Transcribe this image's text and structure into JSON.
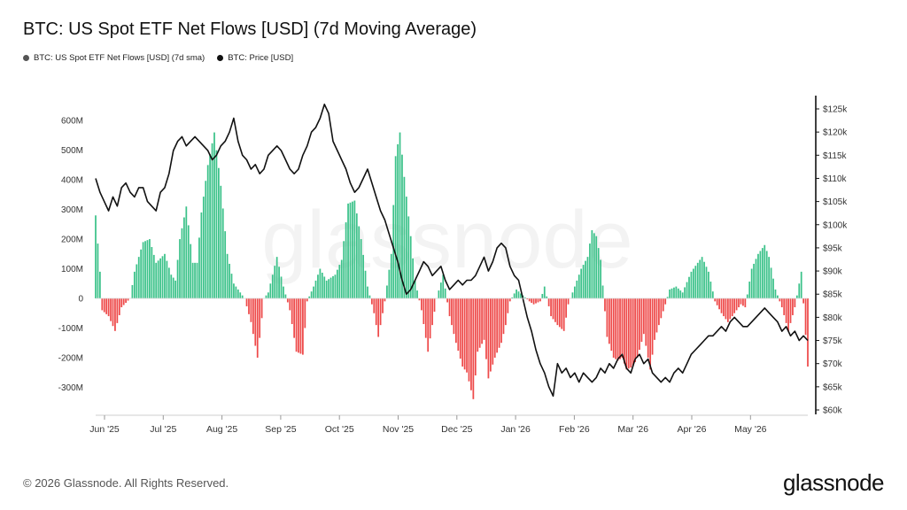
{
  "title": "BTC: US Spot ETF Net Flows [USD] (7d Moving Average)",
  "legend": [
    {
      "label": "BTC: US Spot ETF Net Flows [USD] (7d sma)",
      "color": "#555555"
    },
    {
      "label": "BTC: Price [USD]",
      "color": "#111111"
    }
  ],
  "watermark": "glassnode",
  "footer": {
    "copyright": "© 2026 Glassnode. All Rights Reserved.",
    "logo": "glassnode"
  },
  "colors": {
    "positive": "#3cc28a",
    "negative": "#ee4a4a",
    "price": "#111111"
  },
  "chart_data": {
    "type": "bar",
    "x_axis": {
      "labels": [
        "Jun '25",
        "Jul '25",
        "Aug '25",
        "Sep '25",
        "Oct '25",
        "Nov '25",
        "Dec '25",
        "Jan '26",
        "Feb '26",
        "Mar '26",
        "Apr '26",
        "May '26"
      ],
      "range_months": [
        0,
        12.3
      ]
    },
    "y_left": {
      "ticks": [
        "600M",
        "500M",
        "400M",
        "300M",
        "200M",
        "100M",
        "0",
        "-100M",
        "-200M",
        "-300M"
      ],
      "tick_values": [
        600,
        500,
        400,
        300,
        200,
        100,
        0,
        -100,
        -200,
        -300
      ],
      "range": [
        -370,
        650
      ],
      "unit": "USD millions"
    },
    "y_right": {
      "ticks": [
        "$125k",
        "$120k",
        "$115k",
        "$110k",
        "$105k",
        "$100k",
        "$95k",
        "$90k",
        "$85k",
        "$80k",
        "$75k",
        "$70k",
        "$65k",
        "$60k"
      ],
      "tick_values": [
        125,
        120,
        115,
        110,
        105,
        100,
        95,
        90,
        85,
        80,
        75,
        70,
        65,
        60
      ],
      "range": [
        60,
        127
      ],
      "unit": "USD thousands"
    },
    "series": [
      {
        "name": "BTC: US Spot ETF Net Flows [USD] (7d sma)",
        "type": "bar",
        "points": [
          [
            0.0,
            280
          ],
          [
            0.1,
            90
          ],
          [
            0.15,
            -40
          ],
          [
            0.3,
            -60
          ],
          [
            0.45,
            -110
          ],
          [
            0.6,
            -30
          ],
          [
            0.8,
            0
          ],
          [
            0.9,
            90
          ],
          [
            1.1,
            190
          ],
          [
            1.25,
            200
          ],
          [
            1.4,
            120
          ],
          [
            1.6,
            150
          ],
          [
            1.75,
            80
          ],
          [
            1.85,
            60
          ],
          [
            1.95,
            200
          ],
          [
            2.1,
            310
          ],
          [
            2.25,
            120
          ],
          [
            2.35,
            120
          ],
          [
            2.45,
            290
          ],
          [
            2.6,
            450
          ],
          [
            2.75,
            560
          ],
          [
            2.9,
            380
          ],
          [
            3.05,
            150
          ],
          [
            3.2,
            50
          ],
          [
            3.35,
            20
          ],
          [
            3.45,
            0
          ],
          [
            3.6,
            -80
          ],
          [
            3.75,
            -200
          ],
          [
            3.9,
            0
          ],
          [
            4.0,
            20
          ],
          [
            4.2,
            140
          ],
          [
            4.35,
            40
          ],
          [
            4.5,
            -40
          ],
          [
            4.65,
            -180
          ],
          [
            4.8,
            -190
          ],
          [
            4.9,
            -10
          ],
          [
            5.05,
            40
          ],
          [
            5.2,
            100
          ],
          [
            5.35,
            60
          ],
          [
            5.55,
            80
          ],
          [
            5.7,
            130
          ],
          [
            5.85,
            320
          ],
          [
            6.0,
            330
          ],
          [
            6.15,
            200
          ],
          [
            6.3,
            40
          ],
          [
            6.45,
            -50
          ],
          [
            6.55,
            -130
          ],
          [
            6.7,
            -10
          ],
          [
            6.85,
            150
          ],
          [
            6.95,
            480
          ],
          [
            7.05,
            560
          ],
          [
            7.15,
            410
          ],
          [
            7.3,
            210
          ],
          [
            7.4,
            60
          ],
          [
            7.55,
            -40
          ],
          [
            7.7,
            -180
          ],
          [
            7.9,
            0
          ],
          [
            8.05,
            80
          ],
          [
            8.2,
            -60
          ],
          [
            8.35,
            -150
          ],
          [
            8.5,
            -230
          ],
          [
            8.6,
            -250
          ],
          [
            8.75,
            -340
          ],
          [
            8.85,
            -180
          ],
          [
            9.0,
            -140
          ],
          [
            9.1,
            -270
          ],
          [
            9.25,
            -200
          ],
          [
            9.4,
            -150
          ],
          [
            9.5,
            -90
          ],
          [
            9.6,
            -10
          ],
          [
            9.75,
            30
          ],
          [
            9.9,
            10
          ],
          [
            10.05,
            -10
          ],
          [
            10.15,
            -20
          ],
          [
            10.3,
            -10
          ],
          [
            10.4,
            40
          ],
          [
            10.55,
            -60
          ],
          [
            10.7,
            -90
          ],
          [
            10.85,
            -110
          ],
          [
            10.95,
            -20
          ],
          [
            11.1,
            40
          ],
          [
            11.25,
            100
          ],
          [
            11.4,
            140
          ],
          [
            11.5,
            230
          ],
          [
            11.6,
            210
          ],
          [
            11.7,
            130
          ],
          [
            11.85,
            -130
          ],
          [
            12.0,
            -200
          ],
          [
            12.1,
            -210
          ],
          [
            12.2,
            -200
          ],
          [
            12.3,
            -240
          ],
          [
            12.45,
            -230
          ],
          [
            12.55,
            -200
          ],
          [
            12.7,
            -120
          ],
          [
            12.85,
            -240
          ],
          [
            12.95,
            -140
          ],
          [
            13.05,
            -90
          ],
          [
            13.2,
            -20
          ],
          [
            13.3,
            30
          ],
          [
            13.45,
            40
          ],
          [
            13.6,
            20
          ],
          [
            13.8,
            90
          ],
          [
            13.95,
            120
          ],
          [
            14.05,
            140
          ],
          [
            14.2,
            90
          ],
          [
            14.35,
            -10
          ],
          [
            14.5,
            -50
          ],
          [
            14.65,
            -80
          ],
          [
            14.8,
            -50
          ],
          [
            14.95,
            -20
          ],
          [
            15.05,
            -30
          ],
          [
            15.2,
            100
          ],
          [
            15.35,
            150
          ],
          [
            15.5,
            180
          ],
          [
            15.6,
            140
          ],
          [
            15.75,
            30
          ],
          [
            15.9,
            -30
          ],
          [
            16.05,
            -110
          ],
          [
            16.2,
            -30
          ],
          [
            16.35,
            90
          ],
          [
            16.5,
            -230
          ]
        ]
      },
      {
        "name": "BTC: Price [USD]",
        "type": "line",
        "points": [
          [
            0.0,
            110
          ],
          [
            0.1,
            107
          ],
          [
            0.2,
            105
          ],
          [
            0.3,
            103
          ],
          [
            0.4,
            106
          ],
          [
            0.5,
            104
          ],
          [
            0.6,
            108
          ],
          [
            0.7,
            109
          ],
          [
            0.8,
            107
          ],
          [
            0.9,
            106
          ],
          [
            1.0,
            108
          ],
          [
            1.1,
            108
          ],
          [
            1.2,
            105
          ],
          [
            1.3,
            104
          ],
          [
            1.4,
            103
          ],
          [
            1.5,
            107
          ],
          [
            1.6,
            108
          ],
          [
            1.7,
            111
          ],
          [
            1.8,
            116
          ],
          [
            1.9,
            118
          ],
          [
            2.0,
            119
          ],
          [
            2.1,
            117
          ],
          [
            2.2,
            118
          ],
          [
            2.3,
            119
          ],
          [
            2.4,
            118
          ],
          [
            2.5,
            117
          ],
          [
            2.6,
            116
          ],
          [
            2.7,
            114
          ],
          [
            2.8,
            115
          ],
          [
            2.9,
            117
          ],
          [
            3.0,
            118
          ],
          [
            3.1,
            120
          ],
          [
            3.2,
            123
          ],
          [
            3.3,
            118
          ],
          [
            3.4,
            115
          ],
          [
            3.5,
            114
          ],
          [
            3.6,
            112
          ],
          [
            3.7,
            113
          ],
          [
            3.8,
            111
          ],
          [
            3.9,
            112
          ],
          [
            4.0,
            115
          ],
          [
            4.1,
            116
          ],
          [
            4.2,
            117
          ],
          [
            4.3,
            116
          ],
          [
            4.4,
            114
          ],
          [
            4.5,
            112
          ],
          [
            4.6,
            111
          ],
          [
            4.7,
            112
          ],
          [
            4.8,
            115
          ],
          [
            4.9,
            117
          ],
          [
            5.0,
            120
          ],
          [
            5.1,
            121
          ],
          [
            5.2,
            123
          ],
          [
            5.3,
            126
          ],
          [
            5.4,
            124
          ],
          [
            5.5,
            118
          ],
          [
            5.6,
            116
          ],
          [
            5.7,
            114
          ],
          [
            5.8,
            112
          ],
          [
            5.9,
            109
          ],
          [
            6.0,
            107
          ],
          [
            6.1,
            108
          ],
          [
            6.2,
            110
          ],
          [
            6.3,
            112
          ],
          [
            6.4,
            109
          ],
          [
            6.5,
            106
          ],
          [
            6.6,
            103
          ],
          [
            6.7,
            101
          ],
          [
            6.8,
            98
          ],
          [
            6.9,
            95
          ],
          [
            7.0,
            92
          ],
          [
            7.1,
            88
          ],
          [
            7.2,
            85
          ],
          [
            7.3,
            86
          ],
          [
            7.4,
            88
          ],
          [
            7.5,
            90
          ],
          [
            7.6,
            92
          ],
          [
            7.7,
            91
          ],
          [
            7.8,
            89
          ],
          [
            7.9,
            90
          ],
          [
            8.0,
            91
          ],
          [
            8.1,
            88
          ],
          [
            8.2,
            86
          ],
          [
            8.3,
            87
          ],
          [
            8.4,
            88
          ],
          [
            8.5,
            87
          ],
          [
            8.6,
            88
          ],
          [
            8.7,
            88
          ],
          [
            8.8,
            89
          ],
          [
            8.9,
            91
          ],
          [
            9.0,
            93
          ],
          [
            9.1,
            90
          ],
          [
            9.2,
            92
          ],
          [
            9.3,
            95
          ],
          [
            9.4,
            96
          ],
          [
            9.5,
            95
          ],
          [
            9.6,
            91
          ],
          [
            9.7,
            89
          ],
          [
            9.8,
            88
          ],
          [
            9.9,
            84
          ],
          [
            10.0,
            80
          ],
          [
            10.1,
            77
          ],
          [
            10.2,
            73
          ],
          [
            10.3,
            70
          ],
          [
            10.4,
            68
          ],
          [
            10.5,
            65
          ],
          [
            10.6,
            63
          ],
          [
            10.7,
            70
          ],
          [
            10.8,
            68
          ],
          [
            10.9,
            69
          ],
          [
            11.0,
            67
          ],
          [
            11.1,
            68
          ],
          [
            11.2,
            66
          ],
          [
            11.3,
            68
          ],
          [
            11.4,
            67
          ],
          [
            11.5,
            66
          ],
          [
            11.6,
            67
          ],
          [
            11.7,
            69
          ],
          [
            11.8,
            68
          ],
          [
            11.9,
            70
          ],
          [
            12.0,
            69
          ],
          [
            12.1,
            71
          ],
          [
            12.2,
            72
          ],
          [
            12.3,
            69
          ],
          [
            12.4,
            68
          ],
          [
            12.5,
            71
          ],
          [
            12.6,
            72
          ],
          [
            12.7,
            70
          ],
          [
            12.8,
            71
          ],
          [
            12.9,
            68
          ],
          [
            13.0,
            67
          ],
          [
            13.1,
            66
          ],
          [
            13.2,
            67
          ],
          [
            13.3,
            66
          ],
          [
            13.4,
            68
          ],
          [
            13.5,
            69
          ],
          [
            13.6,
            68
          ],
          [
            13.7,
            70
          ],
          [
            13.8,
            72
          ],
          [
            13.9,
            73
          ],
          [
            14.0,
            74
          ],
          [
            14.1,
            75
          ],
          [
            14.2,
            76
          ],
          [
            14.3,
            76
          ],
          [
            14.4,
            77
          ],
          [
            14.5,
            78
          ],
          [
            14.6,
            77
          ],
          [
            14.7,
            79
          ],
          [
            14.8,
            80
          ],
          [
            14.9,
            79
          ],
          [
            15.0,
            78
          ],
          [
            15.1,
            78
          ],
          [
            15.2,
            79
          ],
          [
            15.3,
            80
          ],
          [
            15.4,
            81
          ],
          [
            15.5,
            82
          ],
          [
            15.6,
            81
          ],
          [
            15.7,
            80
          ],
          [
            15.8,
            79
          ],
          [
            15.9,
            77
          ],
          [
            16.0,
            78
          ],
          [
            16.1,
            76
          ],
          [
            16.2,
            77
          ],
          [
            16.3,
            75
          ],
          [
            16.4,
            76
          ],
          [
            16.5,
            75
          ]
        ]
      }
    ]
  }
}
